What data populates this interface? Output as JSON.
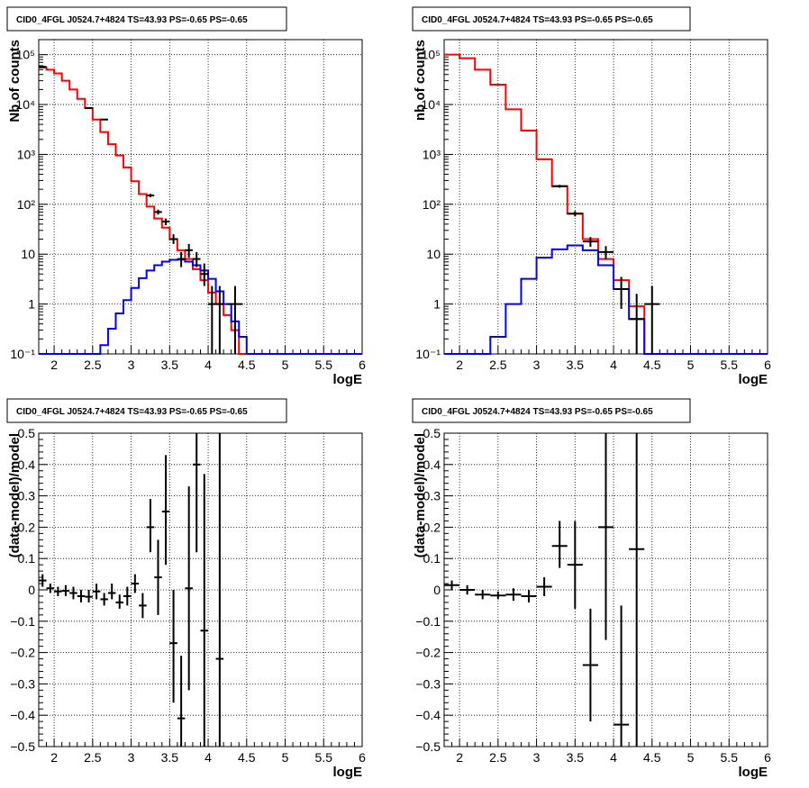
{
  "chart_data": [
    {
      "id": "hist_left",
      "type": "line",
      "title": "CID0_4FGL J0524.7+4824 TS=43.93 PS=-0.65 PS=-0.65",
      "xlabel": "logE",
      "ylabel": "Nb of counts",
      "yscale": "log",
      "xlim": [
        1.8,
        6.0
      ],
      "ylim": [
        0.1,
        200000
      ],
      "xticks": [
        "2",
        "2.5",
        "3",
        "3.5",
        "4",
        "4.5",
        "5",
        "5.5",
        "6"
      ],
      "yticks": [
        "10⁻¹",
        "1",
        "10",
        "10²",
        "10³",
        "10⁴",
        "10⁵"
      ],
      "grid": true,
      "series": [
        {
          "name": "",
          "kind": "step",
          "color": "#ff0000",
          "edges": [
            1.8,
            1.9,
            2.0,
            2.1,
            2.2,
            2.3,
            2.4,
            2.5,
            2.6,
            2.7,
            2.8,
            2.9,
            3.0,
            3.1,
            3.2,
            3.3,
            3.4,
            3.5,
            3.6,
            3.7,
            3.8,
            3.9,
            4.0,
            4.1,
            4.2,
            4.3,
            4.4,
            4.5
          ],
          "values": [
            55000,
            50000,
            42000,
            30000,
            20000,
            13000,
            8500,
            5000,
            2800,
            1600,
            950,
            550,
            290,
            160,
            90,
            52,
            34,
            20,
            12,
            8,
            5,
            3,
            1.7,
            1,
            0.6,
            0.3,
            0.1
          ]
        },
        {
          "name": "",
          "kind": "step",
          "color": "#0000ff",
          "edges": [
            1.8,
            1.9,
            2.0,
            2.1,
            2.2,
            2.3,
            2.4,
            2.5,
            2.6,
            2.7,
            2.8,
            2.9,
            3.0,
            3.1,
            3.2,
            3.3,
            3.4,
            3.5,
            3.6,
            3.7,
            3.8,
            3.9,
            4.0,
            4.1,
            4.2,
            4.3,
            4.4,
            4.5,
            4.6,
            4.7,
            4.8,
            4.9,
            5.0,
            5.1,
            5.2,
            5.3,
            5.4,
            5.5,
            5.6,
            5.7,
            5.8,
            5.9,
            6.0
          ],
          "values": [
            0.1,
            0.1,
            0.1,
            0.1,
            0.1,
            0.1,
            0.1,
            0.1,
            0.15,
            0.32,
            0.65,
            1.2,
            2.1,
            3.3,
            4.7,
            6,
            7.1,
            7.7,
            7.8,
            7.1,
            6,
            4.7,
            3.2,
            1.8,
            1,
            0.45,
            0.22,
            0.1,
            0.1,
            0.1,
            0.1,
            0.1,
            0.1,
            0.1,
            0.1,
            0.1,
            0.1,
            0.1,
            0.1,
            0.1,
            0.1,
            0.1
          ]
        },
        {
          "name": "",
          "kind": "points",
          "color": "#000000",
          "points": [
            {
              "x": 1.85,
              "y": 57000,
              "xerr": 0.05,
              "ylo": 56000,
              "yhi": 58000
            },
            {
              "x": 2.45,
              "y": 8500,
              "xerr": 0.05,
              "ylo": 8300,
              "yhi": 8700
            },
            {
              "x": 2.65,
              "y": 5000,
              "xerr": 0.05,
              "ylo": 4850,
              "yhi": 5150
            },
            {
              "x": 3.25,
              "y": 150,
              "xerr": 0.05,
              "ylo": 138,
              "yhi": 162
            },
            {
              "x": 3.35,
              "y": 70,
              "xerr": 0.05,
              "ylo": 62,
              "yhi": 78
            },
            {
              "x": 3.45,
              "y": 45,
              "xerr": 0.05,
              "ylo": 38,
              "yhi": 52
            },
            {
              "x": 3.55,
              "y": 20,
              "xerr": 0.05,
              "ylo": 16,
              "yhi": 25
            },
            {
              "x": 3.65,
              "y": 8,
              "xerr": 0.05,
              "ylo": 5.5,
              "yhi": 11
            },
            {
              "x": 3.75,
              "y": 12,
              "xerr": 0.05,
              "ylo": 8.5,
              "yhi": 16
            },
            {
              "x": 3.85,
              "y": 8,
              "xerr": 0.05,
              "ylo": 5.5,
              "yhi": 11
            },
            {
              "x": 3.95,
              "y": 4,
              "xerr": 0.05,
              "ylo": 2.3,
              "yhi": 6.5
            },
            {
              "x": 4.05,
              "y": 1,
              "xerr": 0.05,
              "ylo": 0.1,
              "yhi": 2.3
            },
            {
              "x": 4.15,
              "y": 1,
              "xerr": 0.05,
              "ylo": 0.1,
              "yhi": 2.3
            },
            {
              "x": 4.35,
              "y": 1,
              "xerr": 0.1,
              "ylo": 0.1,
              "yhi": 2.3
            }
          ]
        }
      ]
    },
    {
      "id": "hist_right",
      "type": "line",
      "title": "CID0_4FGL J0524.7+4824 TS=43.93 PS=-0.65 PS=-0.65",
      "xlabel": "logE",
      "ylabel": "nb of counts",
      "yscale": "log",
      "xlim": [
        1.8,
        6.0
      ],
      "ylim": [
        0.1,
        200000
      ],
      "xticks": [
        "2",
        "2.5",
        "3",
        "3.5",
        "4",
        "4.5",
        "5",
        "5.5",
        "6"
      ],
      "yticks": [
        "10⁻¹",
        "1",
        "10",
        "10²",
        "10³",
        "10⁴",
        "10⁵"
      ],
      "grid": true,
      "series": [
        {
          "name": "",
          "kind": "step",
          "color": "#ff0000",
          "edges": [
            1.8,
            2.0,
            2.2,
            2.4,
            2.6,
            2.8,
            3.0,
            3.2,
            3.4,
            3.6,
            3.8,
            4.0,
            4.2,
            4.4,
            4.6
          ],
          "values": [
            100000,
            85000,
            50000,
            25000,
            8000,
            3000,
            800,
            230,
            65,
            20,
            8,
            3,
            0.9,
            0.1
          ]
        },
        {
          "name": "",
          "kind": "step",
          "color": "#0000ff",
          "edges": [
            1.8,
            2.0,
            2.2,
            2.4,
            2.6,
            2.8,
            3.0,
            3.2,
            3.4,
            3.6,
            3.8,
            4.0,
            4.2,
            4.4,
            4.6,
            4.8,
            5.0,
            5.2,
            5.4,
            5.6,
            5.8,
            6.0
          ],
          "values": [
            0.1,
            0.1,
            0.1,
            0.22,
            1,
            3.2,
            8.5,
            12.5,
            15,
            12,
            6,
            2,
            0.5,
            0.1,
            0.1,
            0.1,
            0.1,
            0.1,
            0.1,
            0.1,
            0.1
          ]
        },
        {
          "name": "",
          "kind": "points",
          "color": "#000000",
          "points": [
            {
              "x": 3.3,
              "y": 230,
              "xerr": 0.1,
              "ylo": 215,
              "yhi": 245
            },
            {
              "x": 3.5,
              "y": 65,
              "xerr": 0.1,
              "ylo": 57,
              "yhi": 73
            },
            {
              "x": 3.7,
              "y": 18,
              "xerr": 0.1,
              "ylo": 14,
              "yhi": 22
            },
            {
              "x": 3.9,
              "y": 11,
              "xerr": 0.1,
              "ylo": 8,
              "yhi": 14.5
            },
            {
              "x": 4.1,
              "y": 2,
              "xerr": 0.1,
              "ylo": 0.8,
              "yhi": 3.5
            },
            {
              "x": 4.3,
              "y": 0.5,
              "xerr": 0.1,
              "ylo": 0.1,
              "yhi": 1.6
            },
            {
              "x": 4.5,
              "y": 1,
              "xerr": 0.1,
              "ylo": 0.1,
              "yhi": 2.3
            }
          ]
        }
      ]
    },
    {
      "id": "resid_left",
      "type": "scatter",
      "title": "CID0_4FGL J0524.7+4824 TS=43.93 PS=-0.65 PS=-0.65",
      "xlabel": "logE",
      "ylabel": "(data-model)/model",
      "yscale": "linear",
      "xlim": [
        1.8,
        6.0
      ],
      "ylim": [
        -0.5,
        0.5
      ],
      "xticks": [
        "2",
        "2.5",
        "3",
        "3.5",
        "4",
        "4.5",
        "5",
        "5.5",
        "6"
      ],
      "yticks": [
        "−0.5",
        "−0.4",
        "−0.3",
        "−0.2",
        "−0.1",
        "0",
        "0.1",
        "0.2",
        "0.3",
        "0.4",
        "0.5"
      ],
      "grid": true,
      "series": [
        {
          "name": "",
          "kind": "points",
          "color": "#000000",
          "points": [
            {
              "x": 1.85,
              "y": 0.03,
              "xerr": 0.05,
              "ylo": 0.01,
              "yhi": 0.05
            },
            {
              "x": 1.95,
              "y": 0.005,
              "xerr": 0.05,
              "ylo": -0.01,
              "yhi": 0.02
            },
            {
              "x": 2.05,
              "y": -0.005,
              "xerr": 0.05,
              "ylo": -0.02,
              "yhi": 0.01
            },
            {
              "x": 2.15,
              "y": -0.003,
              "xerr": 0.05,
              "ylo": -0.02,
              "yhi": 0.015
            },
            {
              "x": 2.25,
              "y": -0.01,
              "xerr": 0.05,
              "ylo": -0.03,
              "yhi": 0.01
            },
            {
              "x": 2.35,
              "y": -0.02,
              "xerr": 0.05,
              "ylo": -0.04,
              "yhi": 0.0
            },
            {
              "x": 2.45,
              "y": -0.022,
              "xerr": 0.05,
              "ylo": -0.04,
              "yhi": 0.0
            },
            {
              "x": 2.55,
              "y": -0.005,
              "xerr": 0.05,
              "ylo": -0.03,
              "yhi": 0.02
            },
            {
              "x": 2.65,
              "y": -0.03,
              "xerr": 0.05,
              "ylo": -0.05,
              "yhi": -0.01
            },
            {
              "x": 2.75,
              "y": -0.01,
              "xerr": 0.05,
              "ylo": -0.03,
              "yhi": 0.02
            },
            {
              "x": 2.85,
              "y": -0.04,
              "xerr": 0.05,
              "ylo": -0.06,
              "yhi": -0.015
            },
            {
              "x": 2.95,
              "y": -0.02,
              "xerr": 0.05,
              "ylo": -0.05,
              "yhi": 0.01
            },
            {
              "x": 3.05,
              "y": 0.02,
              "xerr": 0.05,
              "ylo": -0.01,
              "yhi": 0.05
            },
            {
              "x": 3.15,
              "y": -0.05,
              "xerr": 0.05,
              "ylo": -0.09,
              "yhi": -0.01
            },
            {
              "x": 3.25,
              "y": 0.2,
              "xerr": 0.05,
              "ylo": 0.12,
              "yhi": 0.29
            },
            {
              "x": 3.35,
              "y": 0.04,
              "xerr": 0.05,
              "ylo": -0.08,
              "yhi": 0.16
            },
            {
              "x": 3.45,
              "y": 0.25,
              "xerr": 0.05,
              "ylo": 0.08,
              "yhi": 0.43
            },
            {
              "x": 3.55,
              "y": -0.17,
              "xerr": 0.05,
              "ylo": -0.36,
              "yhi": 0.0
            },
            {
              "x": 3.65,
              "y": -0.41,
              "xerr": 0.05,
              "ylo": -0.5,
              "yhi": -0.21
            },
            {
              "x": 3.75,
              "y": 0.005,
              "xerr": 0.05,
              "ylo": -0.32,
              "yhi": 0.33
            },
            {
              "x": 3.85,
              "y": 0.4,
              "xerr": 0.05,
              "ylo": 0.12,
              "yhi": 0.5
            },
            {
              "x": 3.95,
              "y": -0.13,
              "xerr": 0.05,
              "ylo": -0.5,
              "yhi": 0.37
            },
            {
              "x": 4.15,
              "y": -0.22,
              "xerr": 0.05,
              "ylo": -0.5,
              "yhi": 0.5
            }
          ]
        }
      ]
    },
    {
      "id": "resid_right",
      "type": "scatter",
      "title": "CID0_4FGL J0524.7+4824 TS=43.93 PS=-0.65 PS=-0.65",
      "xlabel": "logE",
      "ylabel": "(data-model)/model",
      "yscale": "linear",
      "xlim": [
        1.8,
        6.0
      ],
      "ylim": [
        -0.5,
        0.5
      ],
      "xticks": [
        "2",
        "2.5",
        "3",
        "3.5",
        "4",
        "4.5",
        "5",
        "5.5",
        "6"
      ],
      "yticks": [
        "−0.5",
        "−0.4",
        "−0.3",
        "−0.2",
        "−0.1",
        "0",
        "0.1",
        "0.2",
        "0.3",
        "0.4",
        "0.5"
      ],
      "grid": true,
      "series": [
        {
          "name": "",
          "kind": "points",
          "color": "#000000",
          "points": [
            {
              "x": 1.9,
              "y": 0.015,
              "xerr": 0.1,
              "ylo": 0.0,
              "yhi": 0.03
            },
            {
              "x": 2.1,
              "y": 0.0,
              "xerr": 0.1,
              "ylo": -0.015,
              "yhi": 0.015
            },
            {
              "x": 2.3,
              "y": -0.015,
              "xerr": 0.1,
              "ylo": -0.03,
              "yhi": 0.0
            },
            {
              "x": 2.5,
              "y": -0.018,
              "xerr": 0.1,
              "ylo": -0.03,
              "yhi": -0.005
            },
            {
              "x": 2.7,
              "y": -0.015,
              "xerr": 0.1,
              "ylo": -0.035,
              "yhi": 0.005
            },
            {
              "x": 2.9,
              "y": -0.02,
              "xerr": 0.1,
              "ylo": -0.04,
              "yhi": 0.0
            },
            {
              "x": 3.1,
              "y": 0.01,
              "xerr": 0.1,
              "ylo": -0.02,
              "yhi": 0.04
            },
            {
              "x": 3.3,
              "y": 0.14,
              "xerr": 0.1,
              "ylo": 0.07,
              "yhi": 0.22
            },
            {
              "x": 3.5,
              "y": 0.08,
              "xerr": 0.1,
              "ylo": -0.06,
              "yhi": 0.22
            },
            {
              "x": 3.7,
              "y": -0.24,
              "xerr": 0.1,
              "ylo": -0.42,
              "yhi": -0.06
            },
            {
              "x": 3.9,
              "y": 0.2,
              "xerr": 0.1,
              "ylo": -0.16,
              "yhi": 0.5
            },
            {
              "x": 4.1,
              "y": -0.43,
              "xerr": 0.1,
              "ylo": -0.5,
              "yhi": -0.05
            },
            {
              "x": 4.3,
              "y": 0.13,
              "xerr": 0.1,
              "ylo": -0.5,
              "yhi": 0.5
            }
          ]
        }
      ]
    }
  ]
}
